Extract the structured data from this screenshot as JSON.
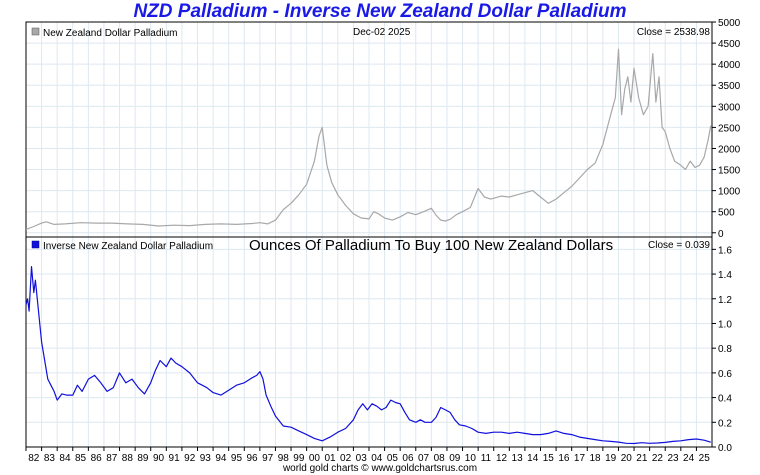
{
  "title": "NZD Palladium - Inverse New Zealand Dollar Palladium",
  "footer": "world gold charts © www.goldchartsrus.com",
  "colors": {
    "title": "#1a1ae6",
    "upper_line": "#a8a8a8",
    "lower_line": "#1010dd",
    "grid": "#dde8f0"
  },
  "chart_data": [
    {
      "type": "line",
      "panel": "upper",
      "legend": "New Zealand Dollar Palladium",
      "date_label": "Dec-02  2025",
      "close_label": "Close = 2538.98",
      "y_ticks": [
        0,
        500,
        1000,
        1500,
        2000,
        2500,
        3000,
        3500,
        4000,
        4500,
        5000
      ],
      "ylim": [
        -100,
        5000
      ],
      "x": [
        1982.0,
        1982.5,
        1983.0,
        1983.3,
        1983.8,
        1984.5,
        1985.5,
        1986.5,
        1987.5,
        1988.5,
        1989.5,
        1990.5,
        1991.5,
        1992.5,
        1993.5,
        1994.5,
        1995.5,
        1996.5,
        1997.0,
        1997.5,
        1998.0,
        1998.5,
        1999.0,
        1999.5,
        2000.0,
        2000.5,
        2000.8,
        2001.0,
        2001.3,
        2001.6,
        2002.0,
        2002.5,
        2003.0,
        2003.5,
        2004.0,
        2004.3,
        2004.6,
        2005.0,
        2005.5,
        2006.0,
        2006.5,
        2007.0,
        2007.5,
        2008.0,
        2008.3,
        2008.6,
        2008.9,
        2009.2,
        2009.6,
        2010.0,
        2010.5,
        2011.0,
        2011.4,
        2011.8,
        2012.5,
        2013.0,
        2013.5,
        2014.0,
        2014.5,
        2015.0,
        2015.5,
        2016.0,
        2016.5,
        2017.0,
        2017.5,
        2018.0,
        2018.5,
        2019.0,
        2019.5,
        2019.8,
        2020.0,
        2020.2,
        2020.4,
        2020.6,
        2020.8,
        2021.0,
        2021.3,
        2021.6,
        2021.9,
        2022.2,
        2022.4,
        2022.6,
        2022.8,
        2023.0,
        2023.3,
        2023.6,
        2024.0,
        2024.3,
        2024.6,
        2024.9,
        2025.2,
        2025.5,
        2025.75,
        2025.92
      ],
      "values": [
        80,
        150,
        230,
        260,
        200,
        210,
        240,
        230,
        230,
        210,
        200,
        160,
        180,
        170,
        200,
        210,
        200,
        220,
        240,
        210,
        300,
        550,
        700,
        900,
        1150,
        1700,
        2300,
        2500,
        1600,
        1200,
        900,
        650,
        450,
        350,
        330,
        500,
        450,
        350,
        300,
        380,
        480,
        430,
        500,
        580,
        420,
        300,
        280,
        320,
        430,
        500,
        600,
        1050,
        850,
        800,
        870,
        850,
        900,
        950,
        1000,
        850,
        700,
        800,
        950,
        1100,
        1300,
        1500,
        1650,
        2100,
        2800,
        3200,
        4350,
        2800,
        3400,
        3700,
        3100,
        3900,
        3200,
        2800,
        3000,
        4250,
        3100,
        3700,
        2500,
        2400,
        2000,
        1700,
        1600,
        1500,
        1700,
        1550,
        1600,
        1800,
        2200,
        2540
      ]
    },
    {
      "type": "line",
      "panel": "lower",
      "legend": "Inverse New Zealand Dollar Palladium",
      "subtitle": "Ounces Of Palladium To Buy 100 New Zealand Dollars",
      "close_label": "Close = 0.039",
      "y_ticks": [
        "0.0",
        "0.2",
        "0.4",
        "0.6",
        "0.8",
        "1.0",
        "1.2",
        "1.4",
        "1.6"
      ],
      "ylim": [
        0,
        1.7
      ],
      "x": [
        1982.0,
        1982.1,
        1982.2,
        1982.35,
        1982.5,
        1982.6,
        1982.8,
        1983.0,
        1983.2,
        1983.4,
        1983.6,
        1983.8,
        1984.0,
        1984.3,
        1984.6,
        1985.0,
        1985.3,
        1985.6,
        1986.0,
        1986.4,
        1986.8,
        1987.2,
        1987.6,
        1988.0,
        1988.4,
        1988.8,
        1989.2,
        1989.6,
        1990.0,
        1990.3,
        1990.6,
        1991.0,
        1991.3,
        1991.6,
        1992.0,
        1992.5,
        1993.0,
        1993.3,
        1993.6,
        1994.0,
        1994.5,
        1995.0,
        1995.5,
        1996.0,
        1996.5,
        1996.8,
        1997.0,
        1997.2,
        1997.4,
        1997.7,
        1998.0,
        1998.5,
        1999.0,
        1999.5,
        2000.0,
        2000.5,
        2001.0,
        2001.5,
        2002.0,
        2002.5,
        2003.0,
        2003.3,
        2003.6,
        2003.9,
        2004.2,
        2004.5,
        2004.8,
        2005.1,
        2005.4,
        2005.7,
        2006.0,
        2006.3,
        2006.6,
        2007.0,
        2007.3,
        2007.6,
        2008.0,
        2008.3,
        2008.6,
        2008.9,
        2009.2,
        2009.5,
        2009.8,
        2010.2,
        2010.6,
        2011.0,
        2011.5,
        2012.0,
        2012.5,
        2013.0,
        2013.5,
        2014.0,
        2014.5,
        2015.0,
        2015.5,
        2016.0,
        2016.5,
        2017.0,
        2017.5,
        2018.0,
        2018.5,
        2019.0,
        2019.5,
        2020.0,
        2020.5,
        2021.0,
        2021.5,
        2022.0,
        2022.5,
        2023.0,
        2023.5,
        2024.0,
        2024.5,
        2025.0,
        2025.5,
        2025.92
      ],
      "values": [
        1.15,
        1.2,
        1.1,
        1.46,
        1.25,
        1.35,
        1.1,
        0.85,
        0.7,
        0.55,
        0.5,
        0.45,
        0.38,
        0.43,
        0.42,
        0.42,
        0.5,
        0.45,
        0.55,
        0.58,
        0.52,
        0.45,
        0.48,
        0.6,
        0.52,
        0.55,
        0.48,
        0.43,
        0.52,
        0.62,
        0.7,
        0.65,
        0.72,
        0.68,
        0.65,
        0.6,
        0.52,
        0.5,
        0.48,
        0.44,
        0.42,
        0.46,
        0.5,
        0.52,
        0.56,
        0.58,
        0.61,
        0.55,
        0.42,
        0.33,
        0.25,
        0.17,
        0.16,
        0.13,
        0.1,
        0.07,
        0.05,
        0.08,
        0.12,
        0.15,
        0.22,
        0.3,
        0.35,
        0.3,
        0.35,
        0.33,
        0.3,
        0.32,
        0.38,
        0.36,
        0.35,
        0.28,
        0.22,
        0.2,
        0.22,
        0.2,
        0.2,
        0.24,
        0.32,
        0.3,
        0.28,
        0.22,
        0.18,
        0.17,
        0.15,
        0.12,
        0.11,
        0.12,
        0.12,
        0.11,
        0.12,
        0.11,
        0.1,
        0.1,
        0.11,
        0.13,
        0.11,
        0.1,
        0.08,
        0.07,
        0.06,
        0.05,
        0.045,
        0.04,
        0.03,
        0.028,
        0.035,
        0.03,
        0.032,
        0.037,
        0.045,
        0.05,
        0.06,
        0.065,
        0.055,
        0.039
      ]
    }
  ],
  "x_ticks": [
    "82",
    "83",
    "84",
    "85",
    "86",
    "87",
    "88",
    "89",
    "90",
    "91",
    "92",
    "93",
    "94",
    "95",
    "96",
    "97",
    "98",
    "99",
    "00",
    "01",
    "02",
    "03",
    "04",
    "05",
    "06",
    "07",
    "08",
    "09",
    "10",
    "11",
    "12",
    "13",
    "14",
    "15",
    "16",
    "17",
    "18",
    "19",
    "20",
    "21",
    "22",
    "23",
    "24",
    "25"
  ],
  "x_range": [
    1982.0,
    2026.0
  ]
}
